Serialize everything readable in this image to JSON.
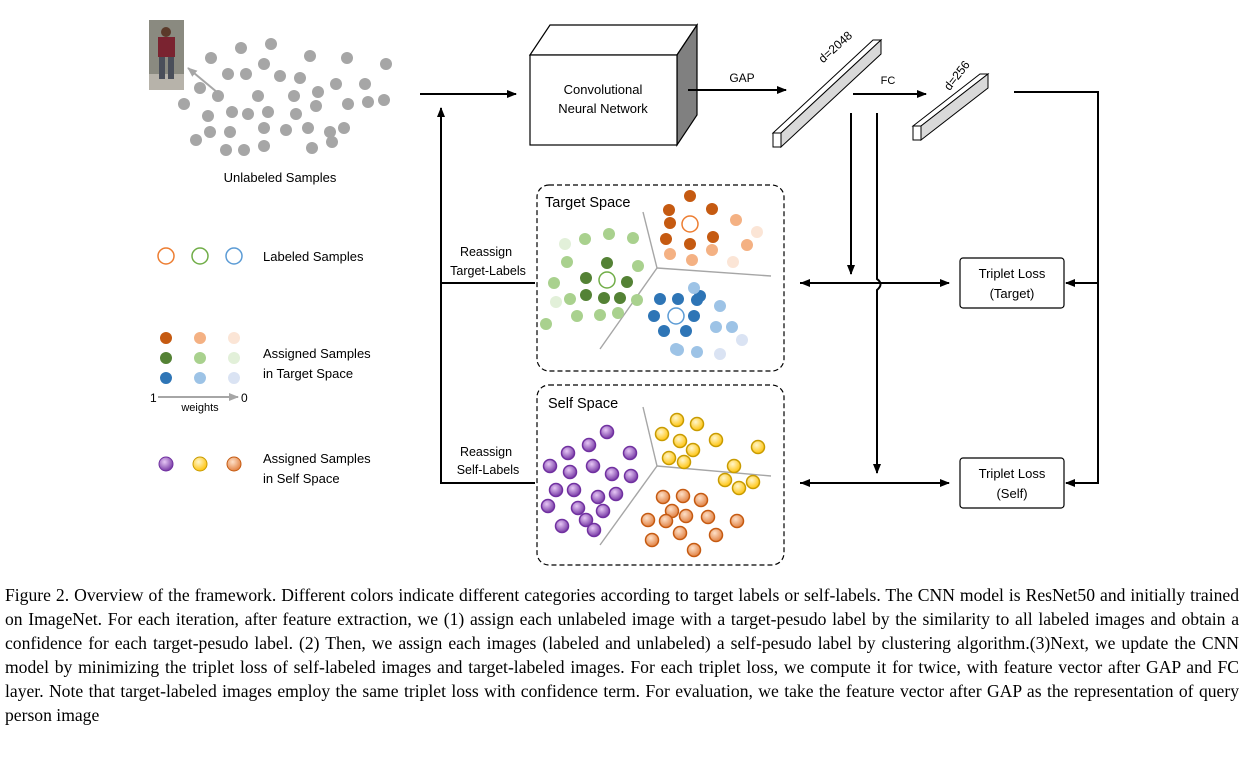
{
  "diagram": {
    "unlabeled_label": "Unlabeled Samples",
    "cnn_line1": "Convolutional",
    "cnn_line2": "Neural Network",
    "gap_label": "GAP",
    "fc_label": "FC",
    "d2048_label": "d=2048",
    "d256_label": "d=256",
    "target_space_title": "Target Space",
    "self_space_title": "Self Space",
    "reassign_target_line1": "Reassign",
    "reassign_target_line2": "Target-Labels",
    "reassign_self_line1": "Reassign",
    "reassign_self_line2": "Self-Labels",
    "triplet_target_line1": "Triplet Loss",
    "triplet_target_line2": "(Target)",
    "triplet_self_line1": "Triplet Loss",
    "triplet_self_line2": "(Self)"
  },
  "legend": {
    "labeled_samples": "Labeled Samples",
    "assigned_target_line1": "Assigned Samples",
    "assigned_target_line2": "in Target Space",
    "weights_label": "weights",
    "weights_max": "1",
    "weights_min": "0",
    "assigned_self_line1": "Assigned Samples",
    "assigned_self_line2": "in Self Space"
  },
  "colors": {
    "orange_strong": "#c55a11",
    "orange_mid": "#f4b183",
    "orange_light": "#fbe5d6",
    "green_strong": "#548235",
    "green_mid": "#a9d18e",
    "green_light": "#e2f0d9",
    "blue_strong": "#2e75b6",
    "blue_mid": "#9dc3e6",
    "blue_light": "#dae3f3",
    "purple": "#7030a0",
    "yellow": "#ffd966",
    "peach": "#f4b183",
    "gray_dot": "#a6a6a6"
  },
  "caption": "Figure 2. Overview of the framework. Different colors indicate different categories according to target labels or self-labels. The CNN model is ResNet50 and initially trained on ImageNet. For each iteration, after feature extraction, we (1) assign each unlabeled image with a target-pesudo label by the similarity to all labeled images and obtain a confidence for each target-pesudo label. (2) Then, we assign each images (labeled and unlabeled) a self-pesudo label by clustering algorithm.(3)Next, we update the CNN model by minimizing the triplet loss of self-labeled images and target-labeled images. For each triplet loss, we compute it for twice, with feature vector after GAP and FC layer. Note that target-labeled images employ the same triplet loss with confidence term. For evaluation, we take the feature vector after GAP as the representation of query person image"
}
